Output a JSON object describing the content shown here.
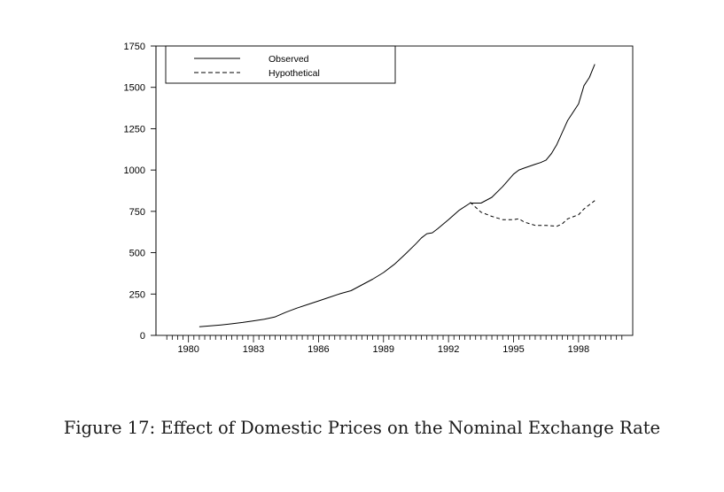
{
  "caption": "Figure 17: Effect of Domestic Prices on the Nominal Exchange Rate",
  "chart_data": {
    "type": "line",
    "title": "",
    "xlabel": "",
    "ylabel": "",
    "xlim": [
      1978.5,
      2000.5
    ],
    "ylim": [
      0,
      1750
    ],
    "grid": false,
    "legend_position": "top-left",
    "x_ticks": [
      1980,
      1983,
      1986,
      1989,
      1992,
      1995,
      1998
    ],
    "x_tick_labels": [
      "1980",
      "1983",
      "1986",
      "1989",
      "1992",
      "1995",
      "1998"
    ],
    "y_ticks": [
      0,
      250,
      500,
      750,
      1000,
      1250,
      1500,
      1750
    ],
    "y_tick_labels": [
      "0",
      "250",
      "500",
      "750",
      "1000",
      "1250",
      "1500",
      "1750"
    ],
    "minor_x_ticks_per_year": 4,
    "series": [
      {
        "name": "Observed",
        "style": "solid",
        "color": "#000000",
        "x": [
          1980.5,
          1981.0,
          1981.5,
          1982.0,
          1982.5,
          1983.0,
          1983.5,
          1984.0,
          1984.5,
          1985.0,
          1985.5,
          1986.0,
          1986.5,
          1987.0,
          1987.5,
          1988.0,
          1988.5,
          1989.0,
          1989.5,
          1990.0,
          1990.5,
          1990.75,
          1991.0,
          1991.25,
          1991.5,
          1992.0,
          1992.5,
          1993.0,
          1993.25,
          1993.5,
          1994.0,
          1994.5,
          1995.0,
          1995.25,
          1995.5,
          1996.0,
          1996.25,
          1996.5,
          1996.75,
          1997.0,
          1997.5,
          1998.0,
          1998.25,
          1998.5,
          1998.75
        ],
        "values": [
          52,
          57,
          63,
          70,
          78,
          88,
          98,
          112,
          140,
          165,
          187,
          208,
          230,
          252,
          270,
          305,
          340,
          380,
          430,
          490,
          555,
          590,
          615,
          620,
          645,
          700,
          758,
          800,
          800,
          800,
          835,
          900,
          975,
          1000,
          1012,
          1035,
          1045,
          1060,
          1100,
          1155,
          1300,
          1400,
          1510,
          1560,
          1640
        ]
      },
      {
        "name": "Hypothetical",
        "style": "dashed",
        "color": "#000000",
        "x": [
          1993.0,
          1993.5,
          1994.0,
          1994.5,
          1995.0,
          1995.25,
          1995.5,
          1996.0,
          1996.5,
          1997.0,
          1997.25,
          1997.5,
          1998.0,
          1998.25,
          1998.5,
          1998.75
        ],
        "values": [
          805,
          745,
          720,
          700,
          700,
          705,
          685,
          665,
          665,
          660,
          675,
          705,
          730,
          765,
          790,
          815
        ]
      }
    ]
  }
}
